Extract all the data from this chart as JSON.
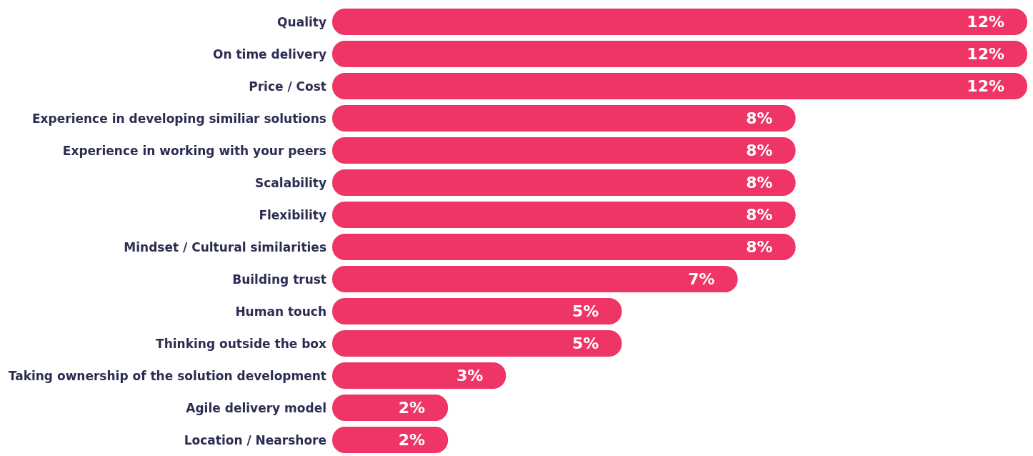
{
  "chart_data": {
    "type": "bar",
    "orientation": "horizontal",
    "categories": [
      "Quality",
      "On time delivery",
      "Price / Cost",
      "Experience in developing similiar solutions",
      "Experience in working with your peers",
      "Scalability",
      "Flexibility",
      "Mindset / Cultural similarities",
      "Building trust",
      "Human touch",
      "Thinking outside the box",
      "Taking ownership of the solution development",
      "Agile delivery model",
      "Location / Nearshore"
    ],
    "values": [
      12,
      12,
      12,
      8,
      8,
      8,
      8,
      8,
      7,
      5,
      5,
      3,
      2,
      2
    ],
    "value_labels": [
      "12%",
      "12%",
      "12%",
      "8%",
      "8%",
      "8%",
      "8%",
      "8%",
      "7%",
      "5%",
      "5%",
      "3%",
      "2%",
      "2%"
    ],
    "color": "#ee3566",
    "grid": false,
    "legend": false
  }
}
